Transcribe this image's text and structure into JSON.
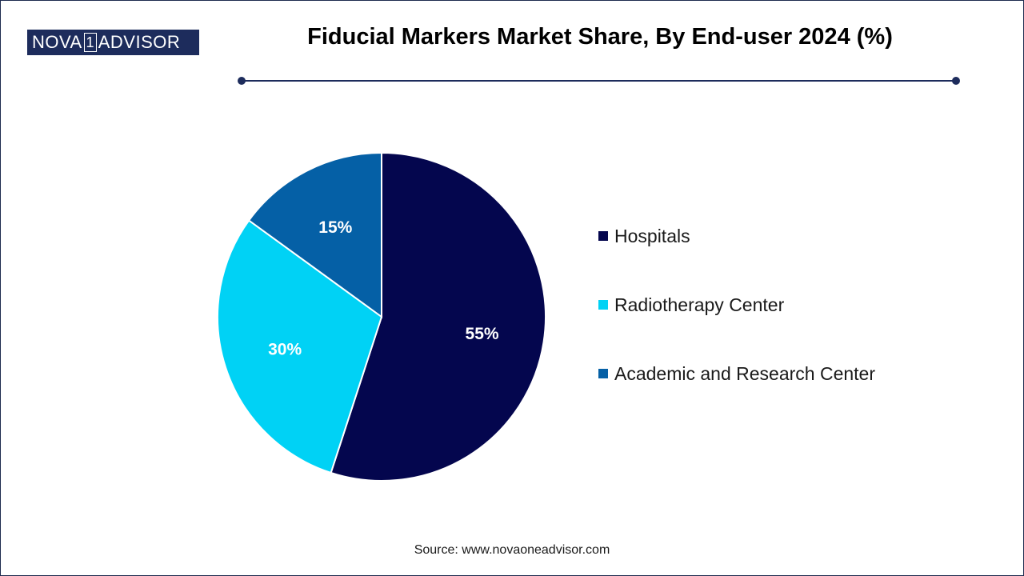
{
  "logo": {
    "left": "NOVA",
    "box": "1",
    "right": "ADVISOR"
  },
  "title": "Fiducial Markers Market Share, By End-user 2024 (%)",
  "source": "Source: www.novaoneadvisor.com",
  "chart_data": {
    "type": "pie",
    "title": "Fiducial Markers Market Share, By End-user 2024 (%)",
    "categories": [
      "Hospitals",
      "Radiotherapy Center",
      "Academic and Research Center"
    ],
    "values": [
      55,
      30,
      15
    ],
    "labels": [
      "55%",
      "30%",
      "15%"
    ],
    "colors": [
      "#04064e",
      "#00d2f5",
      "#0560a6"
    ],
    "legend": "right"
  }
}
